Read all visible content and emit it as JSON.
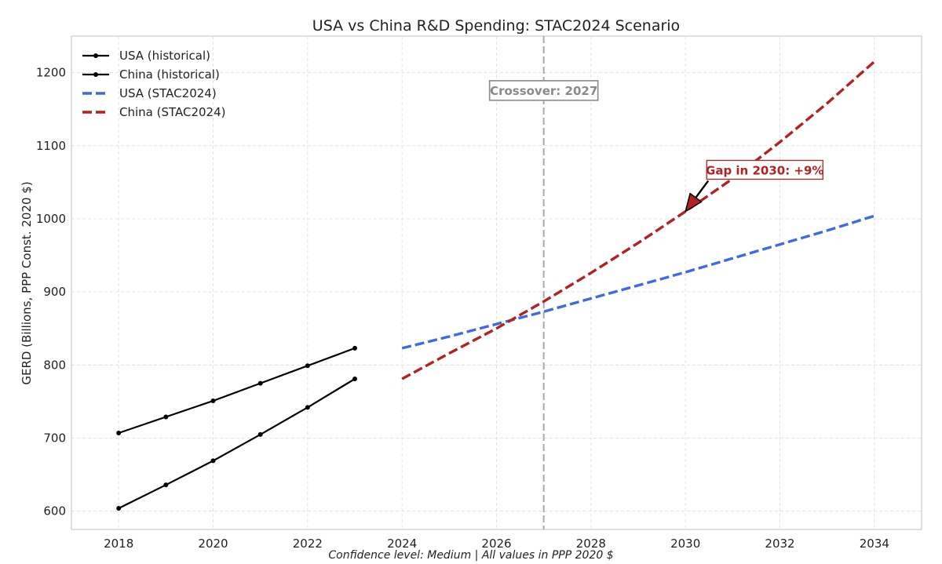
{
  "chart_data": {
    "type": "line",
    "title": "USA vs China R&D Spending: STAC2024 Scenario",
    "xlabel": "Confidence level: Medium | All values in PPP 2020 $",
    "ylabel": "GERD (Billions, PPP Const. 2020 $)",
    "xlim": [
      2017,
      2035
    ],
    "ylim": [
      575,
      1250
    ],
    "x_ticks": [
      2018,
      2020,
      2022,
      2024,
      2026,
      2028,
      2030,
      2032,
      2034
    ],
    "y_ticks": [
      600,
      700,
      800,
      900,
      1000,
      1100,
      1200
    ],
    "grid": true,
    "legend_position": "top-left",
    "series": [
      {
        "name": "USA (historical)",
        "style": "solid-marker",
        "color": "#000000",
        "x": [
          2018,
          2019,
          2020,
          2021,
          2022,
          2023
        ],
        "values": [
          707,
          729,
          751,
          775,
          799,
          823
        ]
      },
      {
        "name": "China (historical)",
        "style": "solid-marker",
        "color": "#000000",
        "x": [
          2018,
          2019,
          2020,
          2021,
          2022,
          2023
        ],
        "values": [
          604,
          636,
          669,
          705,
          742,
          781
        ]
      },
      {
        "name": "USA (STAC2024)",
        "style": "dashed",
        "color": "#4169e1",
        "x": [
          2024,
          2025,
          2026,
          2027,
          2028,
          2029,
          2030,
          2031,
          2032,
          2033,
          2034
        ],
        "values": [
          823,
          839,
          856,
          873,
          891,
          909,
          927,
          946,
          965,
          984,
          1004
        ]
      },
      {
        "name": "China (STAC2024)",
        "style": "dashed",
        "color": "#b22222",
        "x": [
          2024,
          2025,
          2026,
          2027,
          2028,
          2029,
          2030,
          2031,
          2032,
          2033,
          2034
        ],
        "values": [
          781,
          816,
          850,
          887,
          926,
          967,
          1010,
          1055,
          1105,
          1158,
          1215
        ]
      }
    ],
    "annotations": [
      {
        "kind": "vline",
        "x": 2027,
        "color": "#a9a9a9"
      },
      {
        "kind": "label",
        "text": "Crossover: 2027",
        "x": 2027,
        "y": 1175
      },
      {
        "kind": "arrow",
        "text": "Gap in 2030: +9%",
        "x": 2030,
        "y": 1010,
        "text_x": 2030.5,
        "text_y": 1066
      }
    ]
  }
}
